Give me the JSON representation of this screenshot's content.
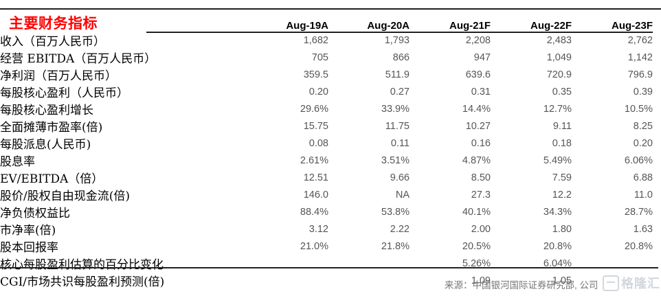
{
  "title": "主要财务指标",
  "table": {
    "columns": [
      "Aug-19A",
      "Aug-20A",
      "Aug-21F",
      "Aug-22F",
      "Aug-23F"
    ],
    "rows": [
      {
        "label": "收入（百万人民币）",
        "values": [
          "1,682",
          "1,793",
          "2,208",
          "2,483",
          "2,762"
        ]
      },
      {
        "label": "经营 EBITDA（百万人民币）",
        "values": [
          "705",
          "866",
          "947",
          "1,049",
          "1,142"
        ]
      },
      {
        "label": "净利润（百万人民币）",
        "values": [
          "359.5",
          "511.9",
          "639.6",
          "720.9",
          "796.9"
        ]
      },
      {
        "label": "每股核心盈利（人民币）",
        "values": [
          "0.20",
          "0.27",
          "0.31",
          "0.35",
          "0.39"
        ]
      },
      {
        "label": "每股核心盈利增长",
        "values": [
          "29.6%",
          "33.9%",
          "14.4%",
          "12.7%",
          "10.5%"
        ]
      },
      {
        "label": "全面摊薄市盈率(倍)",
        "values": [
          "15.75",
          "11.75",
          "10.27",
          "9.11",
          "8.25"
        ]
      },
      {
        "label": "每股派息(人民币)",
        "values": [
          "0.08",
          "0.11",
          "0.16",
          "0.18",
          "0.20"
        ]
      },
      {
        "label": "股息率",
        "values": [
          "2.61%",
          "3.51%",
          "4.87%",
          "5.49%",
          "6.06%"
        ]
      },
      {
        "label": "EV/EBITDA（倍）",
        "values": [
          "12.51",
          "9.66",
          "8.50",
          "7.59",
          "6.88"
        ]
      },
      {
        "label": "股价/股权自由现金流(倍)",
        "values": [
          "146.0",
          "NA",
          "27.3",
          "12.2",
          "11.0"
        ]
      },
      {
        "label": "净负债权益比",
        "values": [
          "88.4%",
          "53.8%",
          "40.1%",
          "34.3%",
          "28.7%"
        ]
      },
      {
        "label": "市净率(倍)",
        "values": [
          "3.12",
          "2.22",
          "2.00",
          "1.80",
          "1.63"
        ]
      },
      {
        "label": "股本回报率",
        "values": [
          "21.0%",
          "21.8%",
          "20.5%",
          "20.8%",
          "20.8%"
        ]
      },
      {
        "label": "核心每股盈利估算的百分比变化",
        "values": [
          "",
          "",
          "5.26%",
          "6.04%",
          ""
        ]
      },
      {
        "label": "CGI/市场共识每股盈利预测(倍)",
        "values": [
          "",
          "",
          "1.09",
          "1.05",
          ""
        ]
      }
    ]
  },
  "footer": {
    "source": "来源：中国银河国际证券研究部, 公司",
    "watermark": "格隆汇"
  },
  "colors": {
    "title": "#ff0000",
    "header_text": "#000000",
    "label_text": "#000000",
    "value_text": "#555555",
    "rule": "#212121",
    "footer_text": "#767676",
    "watermark": "#aeb8c4"
  }
}
